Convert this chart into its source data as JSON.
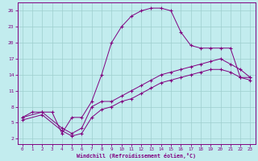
{
  "xlabel": "Windchill (Refroidissement éolien,°C)",
  "background_color": "#c2ecee",
  "line_color": "#800080",
  "xlim": [
    -0.5,
    23.5
  ],
  "ylim": [
    1,
    27.5
  ],
  "xticks": [
    0,
    1,
    2,
    3,
    4,
    5,
    6,
    7,
    8,
    9,
    10,
    11,
    12,
    13,
    14,
    15,
    16,
    17,
    18,
    19,
    20,
    21,
    22,
    23
  ],
  "yticks": [
    2,
    5,
    8,
    11,
    14,
    17,
    20,
    23,
    26
  ],
  "grid_color": "#9ecece",
  "series": [
    {
      "x": [
        0,
        1,
        2,
        3,
        4,
        5,
        6,
        7,
        8,
        9,
        10,
        11,
        12,
        13,
        14,
        15,
        16,
        17,
        18,
        19,
        20,
        21,
        22,
        23
      ],
      "y": [
        6,
        7,
        7,
        7,
        3,
        6,
        6,
        9,
        14,
        20,
        23,
        25,
        26,
        26.5,
        26.5,
        26,
        22,
        19.5,
        19,
        19,
        19,
        19,
        13.5,
        13.5
      ]
    },
    {
      "x": [
        0,
        2,
        4,
        5,
        6,
        7,
        8,
        9,
        10,
        11,
        12,
        13,
        14,
        15,
        16,
        17,
        18,
        19,
        20,
        21,
        22,
        23
      ],
      "y": [
        6,
        7,
        4,
        3,
        4,
        8,
        9,
        9,
        10,
        11,
        12,
        13,
        14,
        14.5,
        15,
        15.5,
        16,
        16.5,
        17,
        16,
        15,
        13.5
      ]
    },
    {
      "x": [
        0,
        2,
        4,
        5,
        6,
        7,
        8,
        9,
        10,
        11,
        12,
        13,
        14,
        15,
        16,
        17,
        18,
        19,
        20,
        21,
        22,
        23
      ],
      "y": [
        5.5,
        6.5,
        3.5,
        2.5,
        3,
        6,
        7.5,
        8,
        9,
        9.5,
        10.5,
        11.5,
        12.5,
        13,
        13.5,
        14,
        14.5,
        15,
        15,
        14.5,
        13.5,
        13
      ]
    }
  ]
}
